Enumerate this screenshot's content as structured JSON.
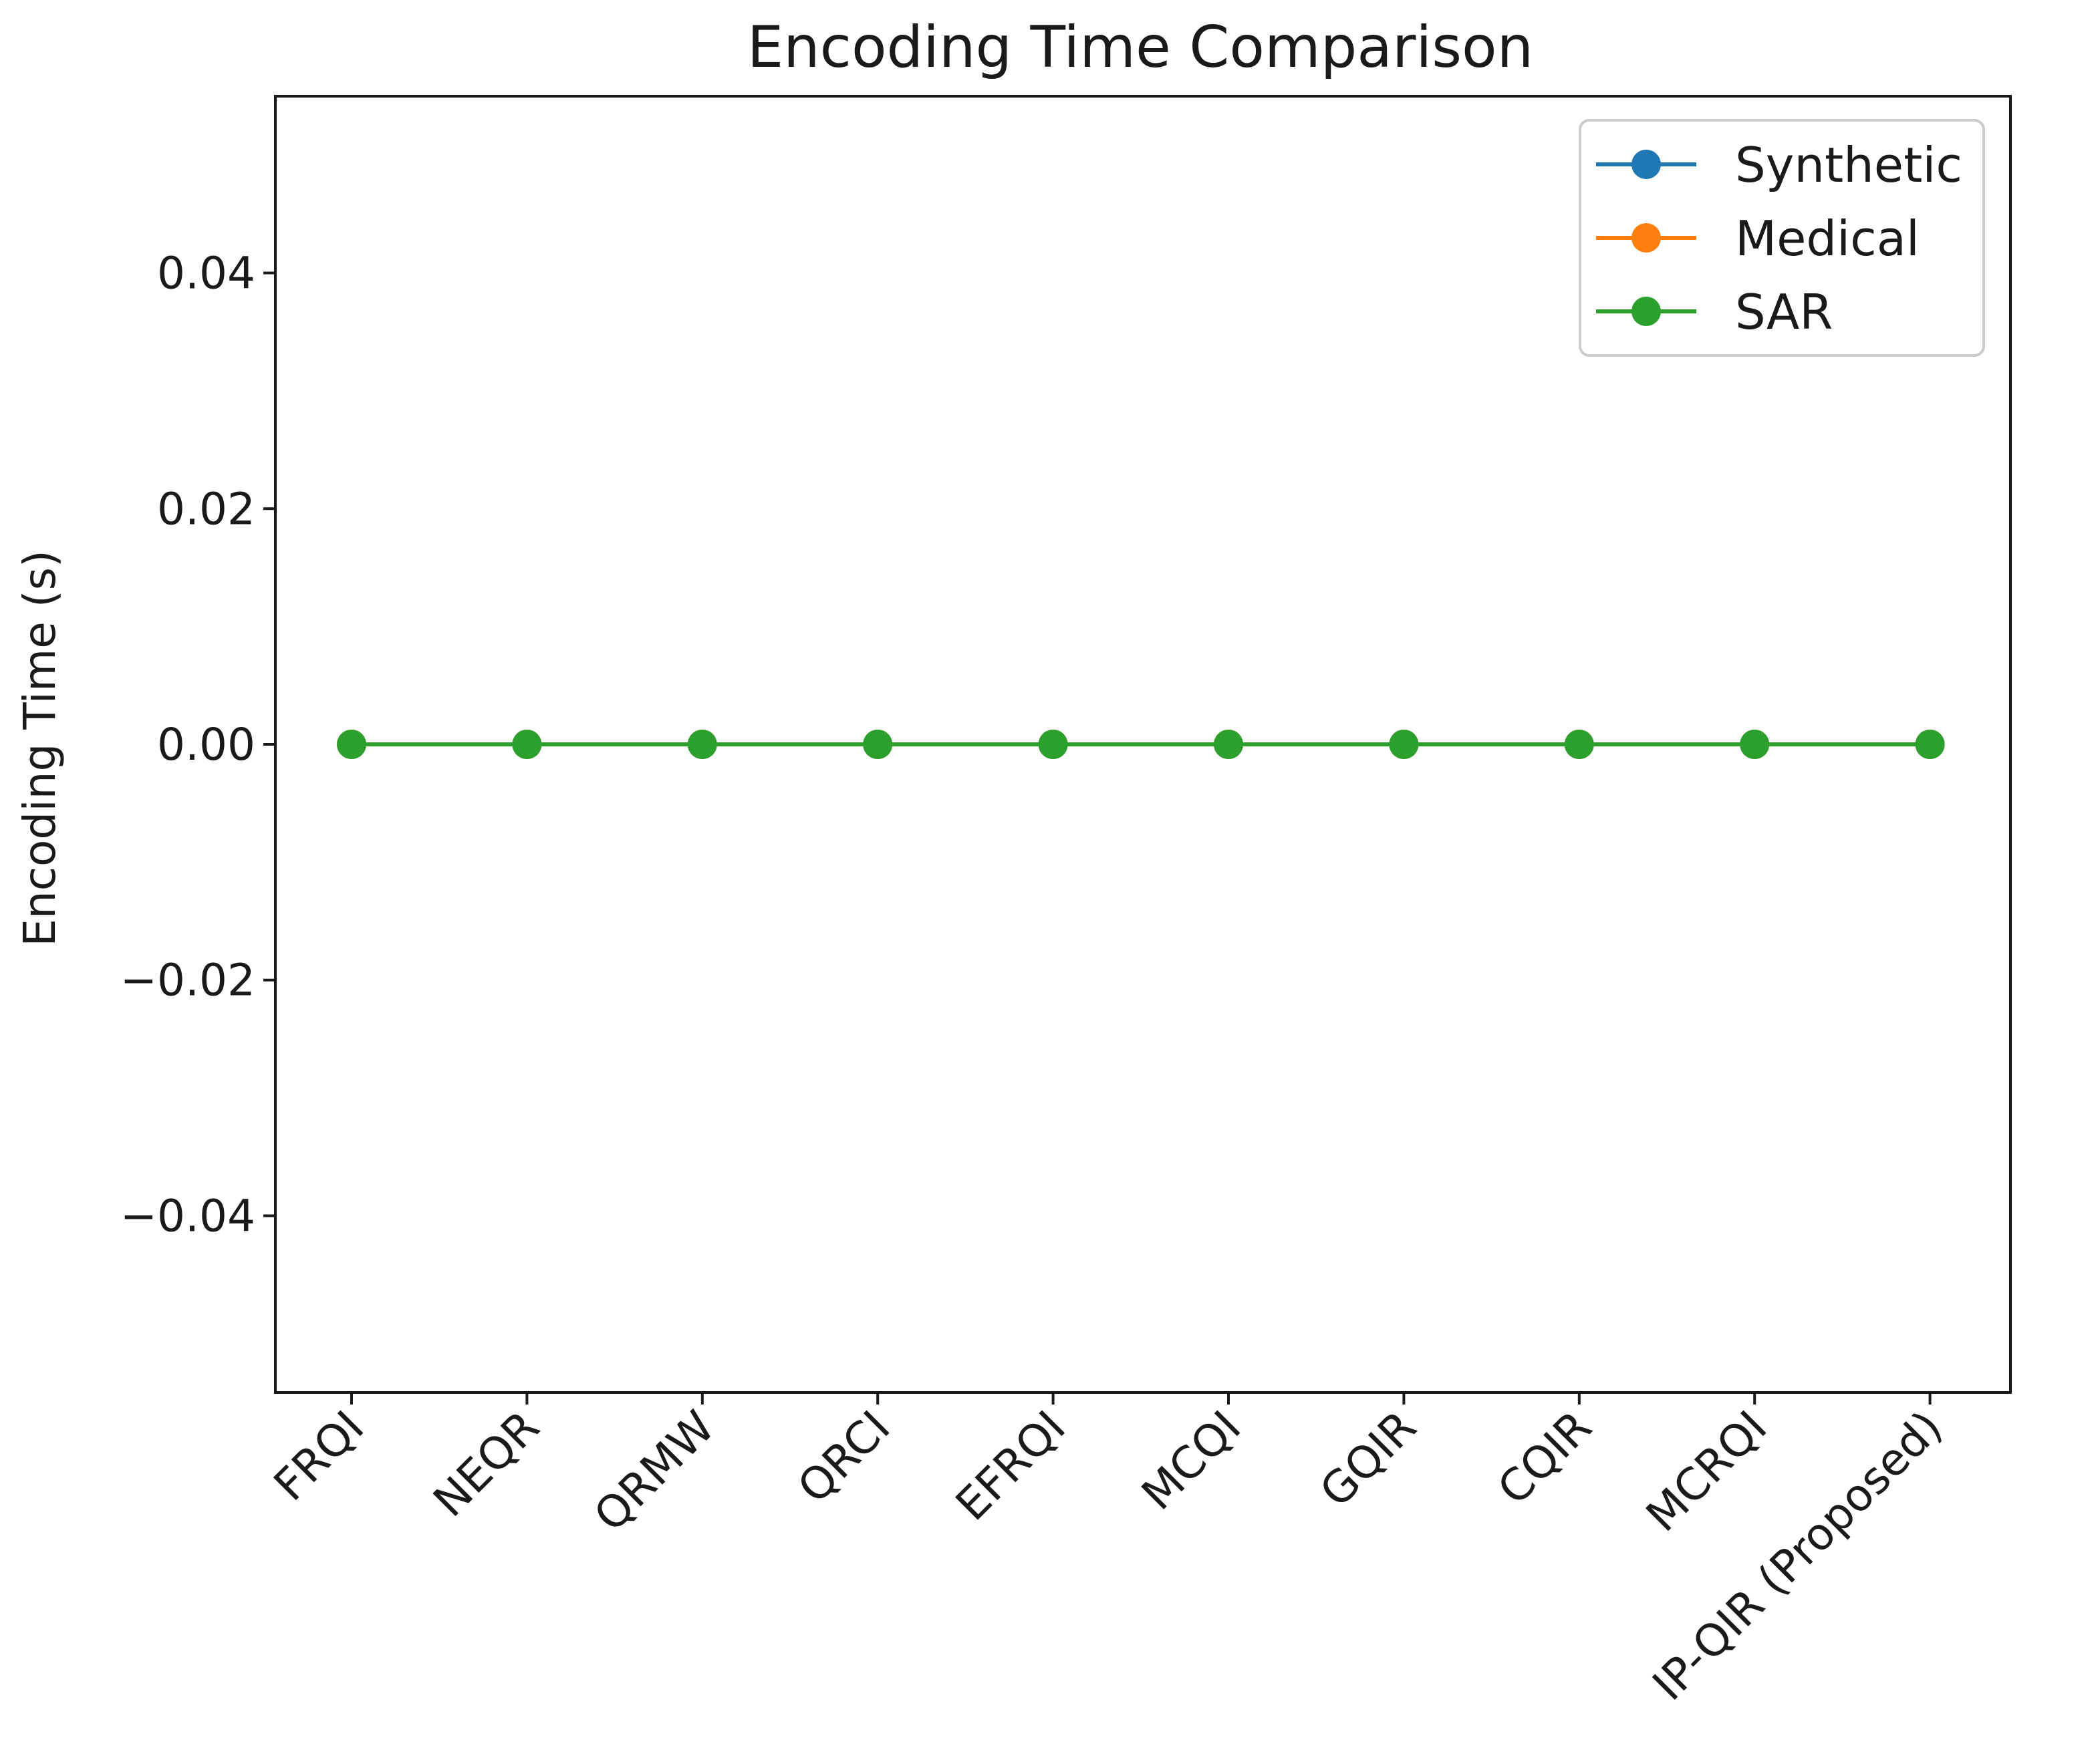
{
  "chart_data": {
    "type": "line",
    "title": "Encoding Time Comparison",
    "xlabel": "",
    "ylabel": "Encoding Time (s)",
    "categories": [
      "FRQI",
      "NEQR",
      "QRMW",
      "QRCI",
      "EFRQI",
      "MCQI",
      "GQIR",
      "CQIR",
      "MCRQI",
      "IP-QIR (Proposed)"
    ],
    "ylim": [
      -0.055,
      0.055
    ],
    "yticks": [
      -0.04,
      -0.02,
      0.0,
      0.02,
      0.04
    ],
    "ytick_labels": [
      "−0.04",
      "−0.02",
      "0.00",
      "0.02",
      "0.04"
    ],
    "grid": false,
    "legend_position": "top-right",
    "series": [
      {
        "name": "Synthetic",
        "color": "#1f77b4",
        "marker": "circle",
        "values": [
          0,
          0,
          0,
          0,
          0,
          0,
          0,
          0,
          0,
          0
        ]
      },
      {
        "name": "Medical",
        "color": "#ff7f0e",
        "marker": "circle",
        "values": [
          0,
          0,
          0,
          0,
          0,
          0,
          0,
          0,
          0,
          0
        ]
      },
      {
        "name": "SAR",
        "color": "#2ca02c",
        "marker": "circle",
        "values": [
          0,
          0,
          0,
          0,
          0,
          0,
          0,
          0,
          0,
          0
        ]
      }
    ]
  }
}
